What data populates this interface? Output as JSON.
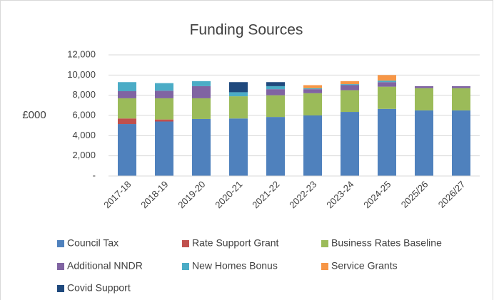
{
  "chart_data": {
    "type": "stacked_bar",
    "title": "Funding Sources",
    "y_label": "£000",
    "categories": [
      "2017-18",
      "2018-19",
      "2019-20",
      "2020-21",
      "2021-22",
      "2022-23",
      "2023-24",
      "2024-25",
      "2025/26",
      "2026/27"
    ],
    "series": [
      {
        "name": "Council Tax",
        "color": "#4f81bd",
        "values": [
          5150,
          5400,
          5650,
          5700,
          5850,
          6000,
          6350,
          6650,
          6500,
          6500
        ]
      },
      {
        "name": "Rate Support Grant",
        "color": "#c0504d",
        "values": [
          550,
          200,
          0,
          0,
          0,
          0,
          0,
          0,
          0,
          0
        ]
      },
      {
        "name": "Business Rates Baseline",
        "color": "#9bbb59",
        "values": [
          2000,
          2100,
          2050,
          2200,
          2150,
          2200,
          2150,
          2200,
          2200,
          2200
        ]
      },
      {
        "name": "Additional NNDR",
        "color": "#8064a2",
        "values": [
          700,
          750,
          1200,
          0,
          600,
          400,
          500,
          450,
          200,
          200
        ]
      },
      {
        "name": "New Homes Bonus",
        "color": "#4bacc6",
        "values": [
          900,
          750,
          500,
          400,
          300,
          100,
          100,
          150,
          0,
          0
        ]
      },
      {
        "name": "Service Grants",
        "color": "#f79646",
        "values": [
          0,
          0,
          0,
          0,
          0,
          300,
          300,
          550,
          0,
          0
        ]
      },
      {
        "name": "Covid Support",
        "color": "#1f497d",
        "values": [
          0,
          0,
          0,
          1000,
          400,
          0,
          0,
          0,
          0,
          0
        ]
      }
    ],
    "ylim": [
      0,
      12000
    ],
    "yticks": [
      {
        "value": 0,
        "label": "-"
      },
      {
        "value": 2000,
        "label": "2,000"
      },
      {
        "value": 4000,
        "label": "4,000"
      },
      {
        "value": 6000,
        "label": "6,000"
      },
      {
        "value": 8000,
        "label": "8,000"
      },
      {
        "value": 10000,
        "label": "10,000"
      },
      {
        "value": 12000,
        "label": "12,000"
      }
    ],
    "grid": true,
    "legend": "bottom"
  }
}
